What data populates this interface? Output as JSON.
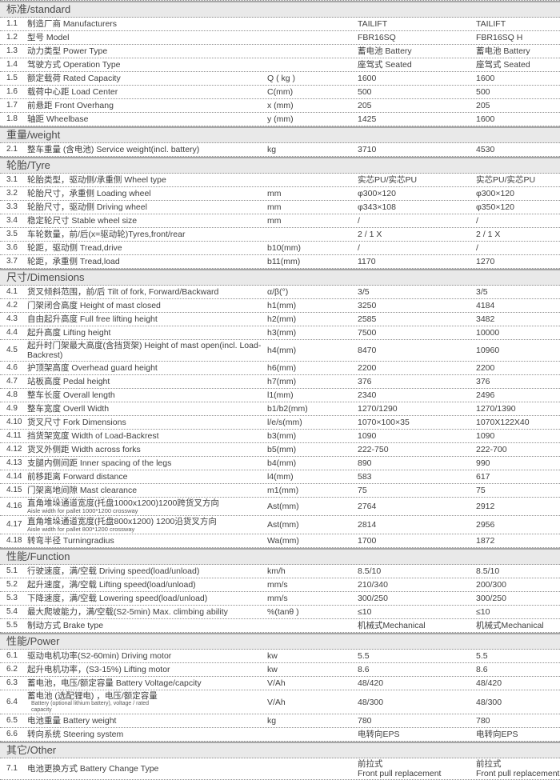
{
  "table": {
    "sections": [
      {
        "title": "标准/standard",
        "rows": [
          {
            "no": "1.1",
            "desc": "制造厂商 Manufacturers",
            "unit": "",
            "v1": "TAILIFT",
            "v2": "TAILIFT"
          },
          {
            "no": "1.2",
            "desc": "型号 Model",
            "unit": "",
            "v1": "FBR16SQ",
            "v2": "FBR16SQ H"
          },
          {
            "no": "1.3",
            "desc": "动力类型 Power Type",
            "unit": "",
            "v1": "蓄电池 Battery",
            "v2": "蓄电池 Battery"
          },
          {
            "no": "1.4",
            "desc": "驾驶方式 Operation Type",
            "unit": "",
            "v1": "座驾式 Seated",
            "v2": "座驾式 Seated"
          },
          {
            "no": "1.5",
            "desc": "额定载荷 Rated Capacity",
            "unit": "Q ( kg )",
            "v1": "1600",
            "v2": "1600"
          },
          {
            "no": "1.6",
            "desc": "载荷中心距 Load Center",
            "unit": "C(mm)",
            "v1": "500",
            "v2": "500"
          },
          {
            "no": "1.7",
            "desc": "前悬距 Front Overhang",
            "unit": "x (mm)",
            "v1": "205",
            "v2": "205"
          },
          {
            "no": "1.8",
            "desc": "轴距 Wheelbase",
            "unit": "y (mm)",
            "v1": "1425",
            "v2": "1600"
          }
        ]
      },
      {
        "title": "重量/weight",
        "rows": [
          {
            "no": "2.1",
            "desc": "整车重量 (含电池) Service weight(incl. battery)",
            "unit": "kg",
            "v1": "3710",
            "v2": "4530"
          }
        ]
      },
      {
        "title": "轮胎/Tyre",
        "rows": [
          {
            "no": "3.1",
            "desc": "轮胎类型，驱动侧/承重侧  Wheel type",
            "unit": "",
            "v1": "实芯PU/实芯PU",
            "v2": "实芯PU/实芯PU"
          },
          {
            "no": "3.2",
            "desc": "轮胎尺寸，承重侧 Loading wheel",
            "unit": "mm",
            "v1": "φ300×120",
            "v2": "φ300×120"
          },
          {
            "no": "3.3",
            "desc": "轮胎尺寸，驱动侧 Driving wheel",
            "unit": "mm",
            "v1": "φ343×108",
            "v2": "φ350×120"
          },
          {
            "no": "3.4",
            "desc": "稳定轮尺寸 Stable wheel size",
            "unit": "mm",
            "v1": "/",
            "v2": "/"
          },
          {
            "no": "3.5",
            "desc": "车轮数量，前/后(x=驱动轮)Tyres,front/rear",
            "unit": "",
            "v1": "2 / 1 X",
            "v2": "2 / 1 X"
          },
          {
            "no": "3.6",
            "desc": "轮距，驱动侧 Tread,drive",
            "unit": "b10(mm)",
            "v1": "/",
            "v2": "/"
          },
          {
            "no": "3.7",
            "desc": "轮距，承重侧 Tread,load",
            "unit": "b11(mm)",
            "v1": "1170",
            "v2": "1270"
          }
        ]
      },
      {
        "title": "尺寸/Dimensions",
        "rows": [
          {
            "no": "4.1",
            "desc": "货叉倾斜范围，前/后  Tilt of fork, Forward/Backward",
            "unit": "α/β(°)",
            "v1": "3/5",
            "v2": "3/5"
          },
          {
            "no": "4.2",
            "desc": "门架闭合高度 Height of mast closed",
            "unit": "h1(mm)",
            "v1": "3250",
            "v2": "4184"
          },
          {
            "no": "4.3",
            "desc": "自由起升高度 Full free lifting height",
            "unit": "h2(mm)",
            "v1": "2585",
            "v2": "3482"
          },
          {
            "no": "4.4",
            "desc": "起升高度 Lifting height",
            "unit": "h3(mm)",
            "v1": "7500",
            "v2": "10000"
          },
          {
            "no": "4.5",
            "desc": "起升时门架最大高度(含挡货架) Height of mast open(incl. Load-Backrest)",
            "unit": "h4(mm)",
            "v1": "8470",
            "v2": "10960"
          },
          {
            "no": "4.6",
            "desc": "护顶架高度 Overhead guard height",
            "unit": "h6(mm)",
            "v1": "2200",
            "v2": "2200"
          },
          {
            "no": "4.7",
            "desc": "站板高度 Pedal height",
            "unit": "h7(mm)",
            "v1": "376",
            "v2": "376"
          },
          {
            "no": "4.8",
            "desc": "整车长度 Overall length",
            "unit": "l1(mm)",
            "v1": "2340",
            "v2": "2496"
          },
          {
            "no": "4.9",
            "desc": "整车宽度 Overll Width",
            "unit": "b1/b2(mm)",
            "v1": "1270/1290",
            "v2": "1270/1390"
          },
          {
            "no": "4.10",
            "desc": "货叉尺寸 Fork Dimensions",
            "unit": "l/e/s(mm)",
            "v1": "1070×100×35",
            "v2": "1070X122X40"
          },
          {
            "no": "4.11",
            "desc": "挡货架宽度 Width of Load-Backrest",
            "unit": "b3(mm)",
            "v1": "1090",
            "v2": "1090"
          },
          {
            "no": "4.12",
            "desc": "货叉外侧距 Width across forks",
            "unit": "b5(mm)",
            "v1": "222-750",
            "v2": "222-700"
          },
          {
            "no": "4.13",
            "desc": "支腿内侧间距 Inner spacing of the legs",
            "unit": "b4(mm)",
            "v1": "890",
            "v2": "990"
          },
          {
            "no": "4.14",
            "desc": "前移距离 Forward distance",
            "unit": "l4(mm)",
            "v1": "583",
            "v2": "617"
          },
          {
            "no": "4.15",
            "desc": "门架离地间隙 Mast clearance",
            "unit": "m1(mm)",
            "v1": "75",
            "v2": "75"
          },
          {
            "no": "4.16",
            "desc": "直角堆垛通道宽度(托盘1000x1200)1200跨货叉方向",
            "sub": "Aisle width for pallet 1000*1200 crossway",
            "unit": "Ast(mm)",
            "v1": "2764",
            "v2": "2912"
          },
          {
            "no": "4.17",
            "desc": "直角堆垛通道宽度(托盘800x1200) 1200沿货叉方向",
            "sub": "Aisle width for pallet 800*1200 crossway",
            "unit": "Ast(mm)",
            "v1": "2814",
            "v2": "2956"
          },
          {
            "no": "4.18",
            "desc": "转弯半径 Turningradius",
            "unit": "Wa(mm)",
            "v1": "1700",
            "v2": "1872"
          }
        ]
      },
      {
        "title": "性能/Function",
        "rows": [
          {
            "no": "5.1",
            "desc": "行驶速度，满/空载 Driving speed(load/unload)",
            "unit": "km/h",
            "v1": "8.5/10",
            "v2": "8.5/10"
          },
          {
            "no": "5.2",
            "desc": "起升速度，满/空载 Lifting speed(load/unload)",
            "unit": "mm/s",
            "v1": "210/340",
            "v2": "200/300"
          },
          {
            "no": "5.3",
            "desc": "下降速度，满/空载 Lowering speed(load/unload)",
            "unit": "mm/s",
            "v1": "300/250",
            "v2": "300/250"
          },
          {
            "no": "5.4",
            "desc": "最大爬坡能力，满/空载(S2-5min) Max. climbing ability",
            "unit": "%(tanθ )",
            "v1": "≤10",
            "v2": "≤10"
          },
          {
            "no": "5.5",
            "desc": "制动方式 Brake type",
            "unit": "",
            "v1": "机械式Mechanical",
            "v2": "机械式Mechanical"
          }
        ]
      },
      {
        "title": "性能/Power",
        "rows": [
          {
            "no": "6.1",
            "desc": "驱动电机功率(S2-60min) Driving motor",
            "unit": "kw",
            "v1": "5.5",
            "v2": "5.5"
          },
          {
            "no": "6.2",
            "desc": "起升电机功率，(S3-15%) Lifting motor",
            "unit": "kw",
            "v1": "8.6",
            "v2": "8.6"
          },
          {
            "no": "6.3",
            "desc": "蓄电池，电压/额定容量 Battery Voltage/capcity",
            "unit": "V/Ah",
            "v1": "48/420",
            "v2": "48/420"
          },
          {
            "no": "6.4",
            "desc": "蓄电池 (选配锂电) ，电压/额定容量",
            "sub": "Battery (optional lithium battery), voltage / rated capacity",
            "sub_inline": true,
            "unit": "V/Ah",
            "v1": "48/300",
            "v2": "48/300"
          },
          {
            "no": "6.5",
            "desc": "电池重量 Battery weight",
            "unit": "kg",
            "v1": "780",
            "v2": "780"
          },
          {
            "no": "6.6",
            "desc": "转向系统 Steering system",
            "unit": "",
            "v1": "电转向EPS",
            "v2": "电转向EPS"
          }
        ]
      },
      {
        "title": "其它/Other",
        "rows": [
          {
            "no": "7.1",
            "desc": "电池更换方式 Battery Change Type",
            "unit": "",
            "v1": "前拉式\nFront pull replacement",
            "v2": "前拉式\nFront pull replacement"
          }
        ]
      }
    ],
    "colors": {
      "section_header_bg": "#e9e9e9",
      "section_header_border": "#a6a6a6",
      "row_divider": "#8f8f8f",
      "text": "#3f3f3f"
    }
  }
}
